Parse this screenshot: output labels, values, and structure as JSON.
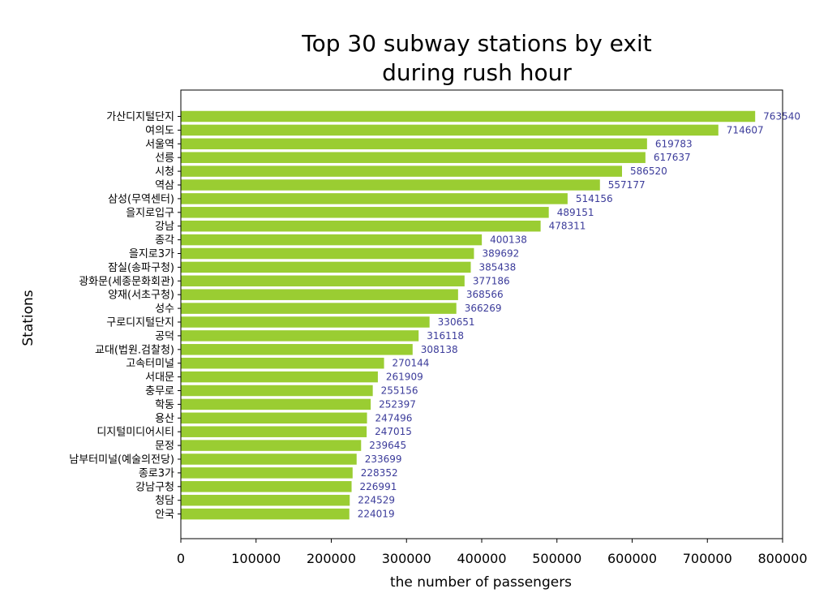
{
  "chart_data": {
    "type": "bar",
    "orientation": "horizontal",
    "title": "Top 30 subway stations by exit\nduring rush hour",
    "xlabel": "the number of passengers",
    "ylabel": "Stations",
    "xlim": [
      0,
      800000
    ],
    "xticks": [
      0,
      100000,
      200000,
      300000,
      400000,
      500000,
      600000,
      700000,
      800000
    ],
    "grid": false,
    "bar_color": "#9acd32",
    "label_color": "#3b3b9a",
    "categories": [
      "가산디지털단지",
      "여의도",
      "서울역",
      "선릉",
      "시청",
      "역삼",
      "삼성(무역센터)",
      "을지로입구",
      "강남",
      "종각",
      "을지로3가",
      "잠실(송파구청)",
      "광화문(세종문화회관)",
      "양재(서초구청)",
      "성수",
      "구로디지털단지",
      "공덕",
      "교대(법원.검찰청)",
      "고속터미널",
      "서대문",
      "충무로",
      "학동",
      "용산",
      "디지털미디어시티",
      "문정",
      "남부터미널(예술의전당)",
      "종로3가",
      "강남구청",
      "청담",
      "안국"
    ],
    "values": [
      763540,
      714607,
      619783,
      617637,
      586520,
      557177,
      514156,
      489151,
      478311,
      400138,
      389692,
      385438,
      377186,
      368566,
      366269,
      330651,
      316118,
      308138,
      270144,
      261909,
      255156,
      252397,
      247496,
      247015,
      239645,
      233699,
      228352,
      226991,
      224529,
      224019
    ]
  }
}
